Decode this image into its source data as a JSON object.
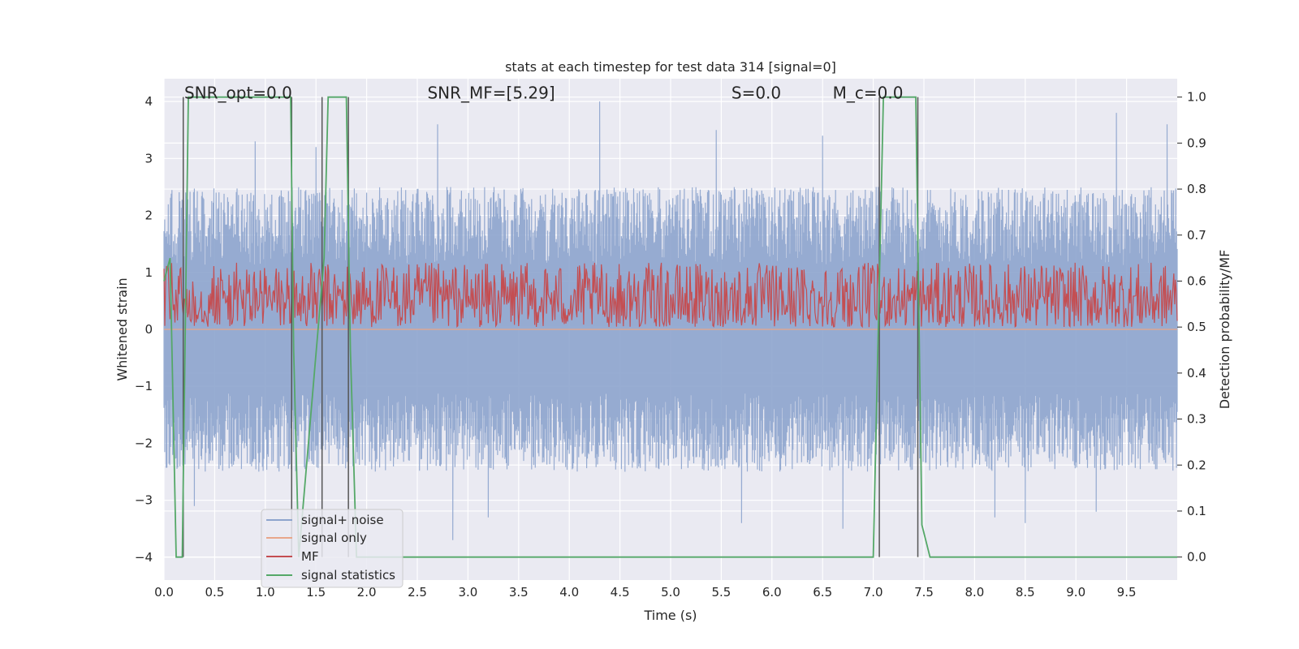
{
  "chart_data": {
    "type": "line",
    "title": "stats at each timestep for test data 314 [signal=0]",
    "xlabel": "Time (s)",
    "ylabel": "Whitened strain",
    "ylabel_right": "Detection probability/MF",
    "xlim": [
      0.0,
      10.0
    ],
    "ylim": [
      -4.4,
      4.4
    ],
    "ylim_right": [
      -0.05,
      1.04
    ],
    "x_ticks": [
      0.0,
      0.5,
      1.0,
      1.5,
      2.0,
      2.5,
      3.0,
      3.5,
      4.0,
      4.5,
      5.0,
      5.5,
      6.0,
      6.5,
      7.0,
      7.5,
      8.0,
      8.5,
      9.0,
      9.5
    ],
    "x_tick_labels": [
      "0.0",
      "0.5",
      "1.0",
      "1.5",
      "2.0",
      "2.5",
      "3.0",
      "3.5",
      "4.0",
      "4.5",
      "5.0",
      "5.5",
      "6.0",
      "6.5",
      "7.0",
      "7.5",
      "8.0",
      "8.5",
      "9.0",
      "9.5"
    ],
    "y_ticks": [
      -4,
      -3,
      -2,
      -1,
      0,
      1,
      2,
      3,
      4
    ],
    "y_tick_labels": [
      "−4",
      "−3",
      "−2",
      "−1",
      "0",
      "1",
      "2",
      "3",
      "4"
    ],
    "y_ticks_right": [
      0.0,
      0.1,
      0.2,
      0.3,
      0.4,
      0.5,
      0.6,
      0.7,
      0.8,
      0.9,
      1.0
    ],
    "y_tick_labels_right": [
      "0.0",
      "0.1",
      "0.2",
      "0.3",
      "0.4",
      "0.5",
      "0.6",
      "0.7",
      "0.8",
      "0.9",
      "1.0"
    ],
    "grid": true,
    "legend_position": "lower-left",
    "annotations": [
      {
        "text": "SNR_opt=0.0",
        "x": 0.2,
        "y": 4.05
      },
      {
        "text": "SNR_MF=[5.29]",
        "x": 2.6,
        "y": 4.05
      },
      {
        "text": "S=0.0",
        "x": 5.6,
        "y": 4.05
      },
      {
        "text": "M_c=0.0",
        "x": 6.6,
        "y": 4.05
      }
    ],
    "series": [
      {
        "name": "signal+ noise",
        "axis": "left",
        "color": "#8da4cd",
        "description": "whitened noise, amplitude mostly within ±2.5 with peaks near ±4",
        "x_range": [
          0.0,
          10.0
        ],
        "envelope": [
          -2.5,
          2.5
        ],
        "peaks": [
          {
            "x": 4.3,
            "y": 4.0
          },
          {
            "x": 0.9,
            "y": 3.3
          },
          {
            "x": 1.5,
            "y": 3.2
          },
          {
            "x": 2.7,
            "y": 3.6
          },
          {
            "x": 5.45,
            "y": 3.5
          },
          {
            "x": 9.4,
            "y": 3.8
          },
          {
            "x": 9.9,
            "y": 3.6
          },
          {
            "x": 6.5,
            "y": 3.4
          },
          {
            "x": 2.85,
            "y": -3.7
          },
          {
            "x": 5.7,
            "y": -3.4
          },
          {
            "x": 8.5,
            "y": -3.4
          },
          {
            "x": 0.3,
            "y": -3.1
          },
          {
            "x": 3.2,
            "y": -3.3
          },
          {
            "x": 6.7,
            "y": -3.5
          },
          {
            "x": 8.2,
            "y": -3.3
          },
          {
            "x": 9.2,
            "y": -3.2
          }
        ]
      },
      {
        "name": "signal only",
        "axis": "left",
        "color": "#e8a68a",
        "x": [
          0.0,
          10.0
        ],
        "values": [
          0.0,
          0.0
        ]
      },
      {
        "name": "MF",
        "axis": "right",
        "color": "#c44e52",
        "description": "matched-filter output fluctuating between about 0.5 and 0.63",
        "x_range": [
          0.0,
          10.0
        ],
        "range": [
          0.5,
          0.64
        ]
      },
      {
        "name": "signal statistics",
        "axis": "right",
        "color": "#55a868",
        "x": [
          0.0,
          0.06,
          0.12,
          0.18,
          0.24,
          1.25,
          1.28,
          1.33,
          1.58,
          1.62,
          1.8,
          1.84,
          1.9,
          3.0,
          7.0,
          7.1,
          7.42,
          7.48,
          7.56,
          10.0
        ],
        "values": [
          0.6,
          0.65,
          0.0,
          0.0,
          1.0,
          1.0,
          0.45,
          0.0,
          0.65,
          1.0,
          1.0,
          0.45,
          0.0,
          0.0,
          0.0,
          1.0,
          1.0,
          0.07,
          0.0,
          0.0
        ]
      }
    ],
    "vertical_lines": [
      0.19,
      1.26,
      1.56,
      1.82,
      7.06,
      7.44
    ]
  }
}
